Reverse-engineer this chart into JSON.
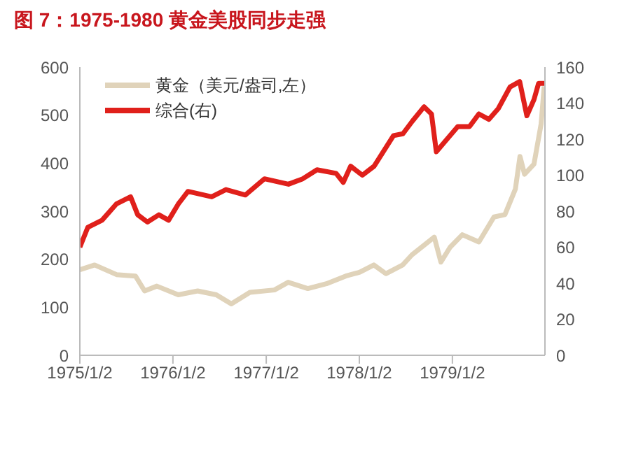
{
  "chart_data": {
    "type": "line",
    "title": "图 7：1975-1980 黄金美股同步走强",
    "xlim": [
      "1975-01-02",
      "1979-12-31"
    ],
    "xticks": [
      {
        "value": "1975-01-02",
        "label": "1975/1/2"
      },
      {
        "value": "1976-01-02",
        "label": "1976/1/2"
      },
      {
        "value": "1977-01-02",
        "label": "1977/1/2"
      },
      {
        "value": "1978-01-02",
        "label": "1978/1/2"
      },
      {
        "value": "1979-01-02",
        "label": "1979/1/2"
      }
    ],
    "ylim": [
      0,
      600
    ],
    "yticks": [
      0,
      100,
      200,
      300,
      400,
      500,
      600
    ],
    "y2lim": [
      0,
      160
    ],
    "y2ticks": [
      0,
      20,
      40,
      60,
      80,
      100,
      120,
      140,
      160
    ],
    "legend": "top left",
    "marker": "none",
    "line_style": "solid",
    "series": [
      {
        "name": "黄金（美元/盎司,左）",
        "color": "#e0d3ba",
        "x": [
          "1975-01-02",
          "1975-03-01",
          "1975-05-26",
          "1975-08-08",
          "1975-09-13",
          "1975-10-31",
          "1976-01-23",
          "1976-04-08",
          "1976-06-20",
          "1976-08-18",
          "1976-10-30",
          "1977-02-03",
          "1977-03-29",
          "1977-06-14",
          "1977-08-26",
          "1977-11-10",
          "1978-01-04",
          "1978-02-28",
          "1978-04-16",
          "1978-06-21",
          "1978-07-27",
          "1978-10-23",
          "1978-11-18",
          "1978-12-24",
          "1979-02-10",
          "1979-04-16",
          "1979-06-14",
          "1979-07-27",
          "1979-09-06",
          "1979-09-24",
          "1979-10-12",
          "1979-11-18",
          "1979-12-16",
          "1979-12-28"
        ],
        "values": [
          178,
          188,
          168,
          165,
          134,
          144,
          126,
          134,
          126,
          107,
          131,
          136,
          152,
          139,
          149,
          165,
          173,
          188,
          170,
          188,
          209,
          246,
          194,
          225,
          251,
          236,
          288,
          293,
          346,
          414,
          377,
          398,
          482,
          560
        ]
      },
      {
        "name": "综合(右)",
        "color": "#e0201b",
        "axis": "y2",
        "x": [
          "1975-01-02",
          "1975-02-02",
          "1975-03-30",
          "1975-05-25",
          "1975-07-20",
          "1975-08-17",
          "1975-09-24",
          "1975-11-08",
          "1975-12-16",
          "1976-01-23",
          "1976-03-01",
          "1976-06-02",
          "1976-07-28",
          "1976-10-12",
          "1976-12-26",
          "1977-03-30",
          "1977-05-25",
          "1977-07-20",
          "1977-10-03",
          "1977-10-31",
          "1977-11-29",
          "1978-01-14",
          "1978-03-01",
          "1978-05-16",
          "1978-06-22",
          "1978-07-29",
          "1978-09-13",
          "1978-10-12",
          "1978-10-31",
          "1978-12-06",
          "1979-01-23",
          "1979-03-10",
          "1979-04-16",
          "1979-05-25",
          "1979-07-01",
          "1979-08-16",
          "1979-09-23",
          "1979-10-21",
          "1979-11-18",
          "1979-12-06",
          "1979-12-29"
        ],
        "values": [
          60,
          71,
          75,
          84,
          88,
          78,
          74,
          78,
          75,
          84,
          91,
          88,
          92,
          89,
          98,
          95,
          98,
          103,
          101,
          96,
          105,
          100,
          105,
          122,
          123,
          130,
          138,
          134,
          113,
          119,
          127,
          127,
          134,
          131,
          137,
          149,
          152,
          133,
          142,
          151,
          151
        ]
      }
    ]
  }
}
